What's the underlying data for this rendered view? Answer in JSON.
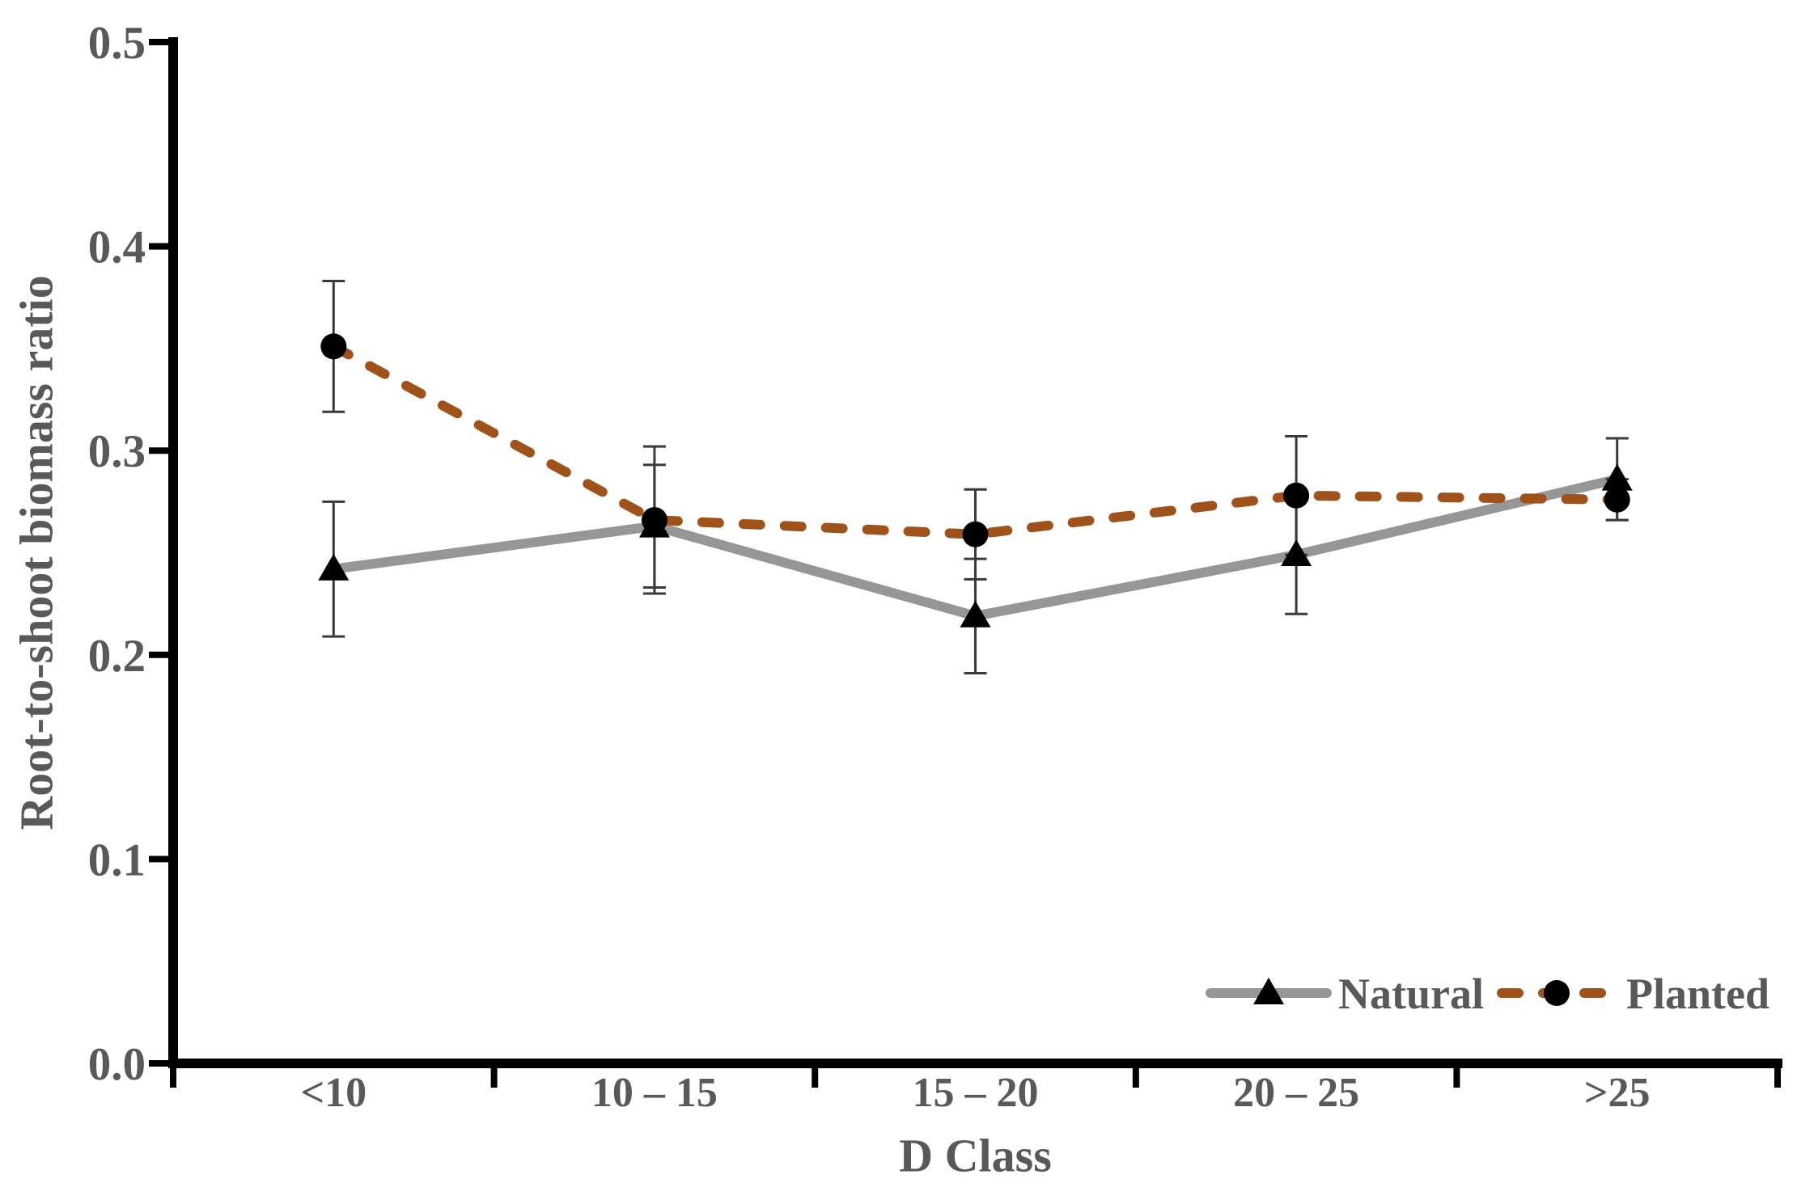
{
  "figure": {
    "background": "#FFFFFF"
  },
  "chart_data": {
    "type": "line",
    "title": "",
    "xlabel": "D Class",
    "ylabel": "Root-to-shoot biomass ratio",
    "categories": [
      "<10",
      "10 – 15",
      "15 – 20",
      "20 – 25",
      ">25"
    ],
    "ylim": [
      0.0,
      0.5
    ],
    "ytick_labels": [
      "0.0",
      "0.1",
      "0.2",
      "0.3",
      "0.4",
      "0.5"
    ],
    "grid": false,
    "legend": {
      "position": "bottom-right",
      "entries": [
        "Natural",
        "Planted"
      ]
    },
    "series": [
      {
        "name": "Natural",
        "marker": "triangle",
        "marker_color": "#000000",
        "line_style": "solid",
        "line_color": "#969696",
        "values": [
          0.242,
          0.263,
          0.219,
          0.249,
          0.286
        ],
        "error_bars": [
          0.033,
          0.03,
          0.028,
          0.029,
          0.02
        ]
      },
      {
        "name": "Planted",
        "marker": "circle",
        "marker_color": "#000000",
        "line_style": "dashed",
        "line_color": "#A0521B",
        "values": [
          0.351,
          0.266,
          0.259,
          0.278,
          0.276
        ],
        "error_bars": [
          0.032,
          0.036,
          0.022,
          0.029,
          0.01
        ]
      }
    ],
    "axis_color": "#000000",
    "tick_label_color": "#595959",
    "error_bar_color": "#3A3A3A"
  }
}
